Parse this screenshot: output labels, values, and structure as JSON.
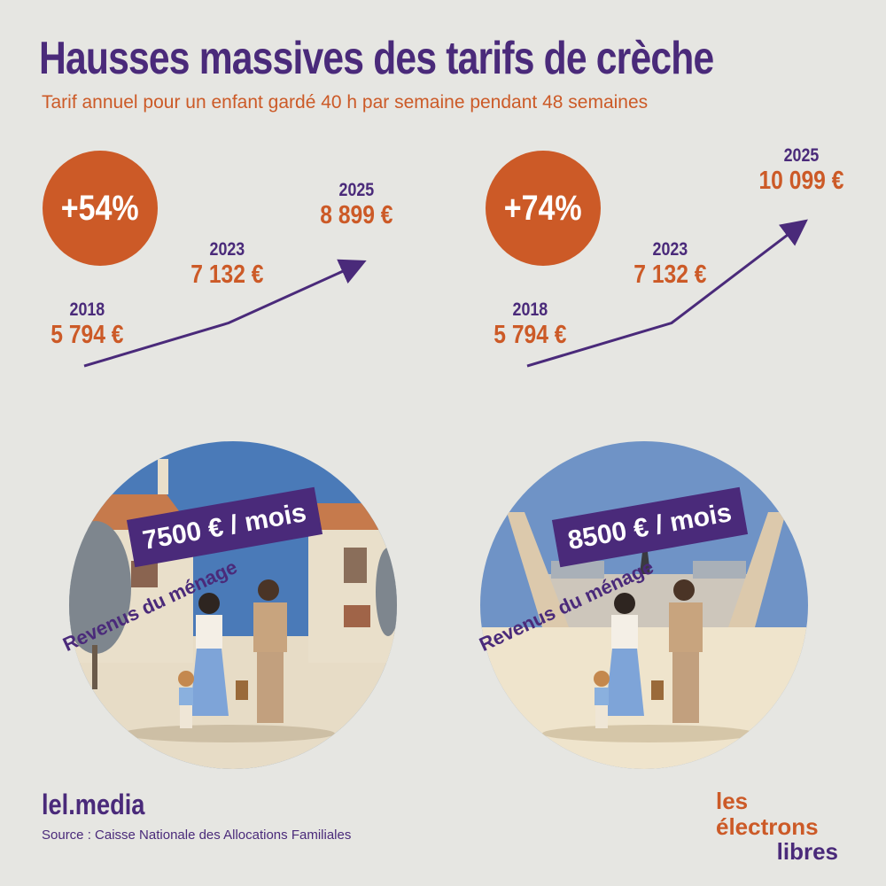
{
  "title": "Hausses massives des tarifs de crèche",
  "subtitle": "Tarif annuel pour un enfant gardé 40 h par semaine pendant 48 semaines",
  "brand": "lel.media",
  "source": "Source : Caisse Nationale des Allocations Familiales",
  "logo": {
    "line1": "les électrons",
    "line2": "libres"
  },
  "income_label": "Revenus du ménage",
  "colors": {
    "purple": "#4a2a7a",
    "orange": "#cc5a27",
    "background": "#e6e6e2"
  },
  "chart_data": [
    {
      "type": "line",
      "x": [
        "2018",
        "2023",
        "2025"
      ],
      "values": [
        5794,
        7132,
        8899
      ],
      "value_labels": [
        "5 794 €",
        "7 132 €",
        "8 899 €"
      ],
      "change_label": "+54%",
      "income": "7500 € / mois"
    },
    {
      "type": "line",
      "x": [
        "2018",
        "2023",
        "2025"
      ],
      "values": [
        5794,
        7132,
        10099
      ],
      "value_labels": [
        "5 794 €",
        "7 132 €",
        "10 099 €"
      ],
      "change_label": "+74%",
      "income": "8500 € / mois"
    }
  ]
}
